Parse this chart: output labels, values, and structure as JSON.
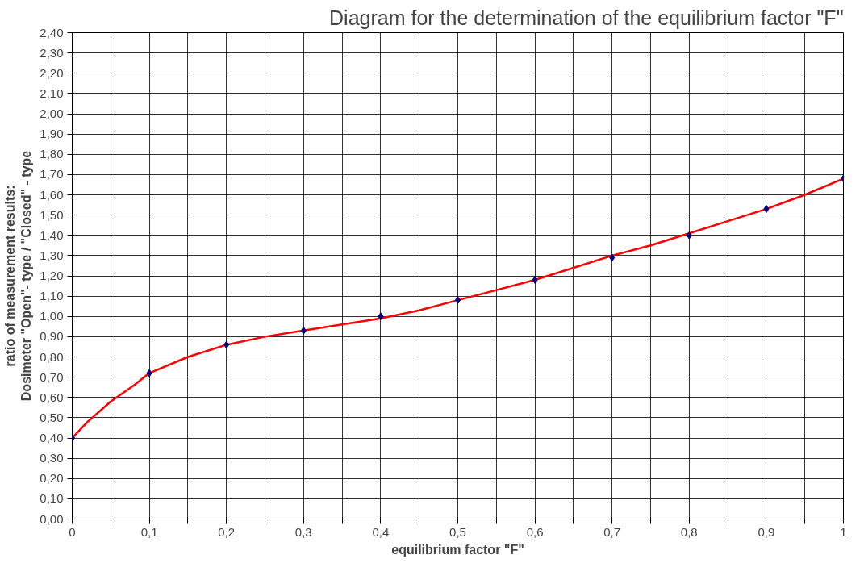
{
  "chart_data": {
    "type": "scatter",
    "title": "Diagram for the determination of the equilibrium factor \"F\"",
    "xlabel": "equilibrium factor \"F\"",
    "ylabel": "ratio of measurement results:\nDosimeter \"Open\"- type / \"Closed\" - type",
    "x": [
      0,
      0.1,
      0.2,
      0.3,
      0.4,
      0.5,
      0.6,
      0.7,
      0.8,
      0.9,
      1
    ],
    "series": [
      {
        "type": "line",
        "color": "#ff0000",
        "marker": "none",
        "line_style": "solid",
        "x": [
          0,
          0.02,
          0.05,
          0.08,
          0.1,
          0.15,
          0.2,
          0.25,
          0.3,
          0.35,
          0.4,
          0.45,
          0.5,
          0.55,
          0.6,
          0.65,
          0.7,
          0.75,
          0.8,
          0.85,
          0.9,
          0.95,
          1
        ],
        "values": [
          0.4,
          0.48,
          0.58,
          0.66,
          0.72,
          0.8,
          0.86,
          0.9,
          0.93,
          0.96,
          0.99,
          1.03,
          1.08,
          1.13,
          1.18,
          1.24,
          1.3,
          1.35,
          1.41,
          1.47,
          1.53,
          1.6,
          1.68
        ]
      },
      {
        "color": "#000080",
        "marker": "diamond",
        "values": [
          0.4,
          0.72,
          0.86,
          0.93,
          1.0,
          1.08,
          1.18,
          1.29,
          1.4,
          1.53,
          1.68
        ]
      }
    ],
    "xlim": [
      0,
      1
    ],
    "ylim": [
      0,
      2.4
    ],
    "xticks": [
      0,
      {
        "value": 0.05,
        "label": null
      },
      {
        "value": 0.1,
        "label": "0,1"
      },
      {
        "value": 0.15,
        "label": null
      },
      {
        "value": 0.2,
        "label": "0,2"
      },
      {
        "value": 0.25,
        "label": null
      },
      {
        "value": 0.3,
        "label": "0,3"
      },
      {
        "value": 0.35,
        "label": null
      },
      {
        "value": 0.4,
        "label": "0,4"
      },
      {
        "value": 0.45,
        "label": null
      },
      {
        "value": 0.5,
        "label": "0,5"
      },
      {
        "value": 0.55,
        "label": null
      },
      {
        "value": 0.6,
        "label": "0,6"
      },
      {
        "value": 0.65,
        "label": null
      },
      {
        "value": 0.7,
        "label": "0,7"
      },
      {
        "value": 0.75,
        "label": null
      },
      {
        "value": 0.8,
        "label": "0,8"
      },
      {
        "value": 0.85,
        "label": null
      },
      {
        "value": 0.9,
        "label": "0,9"
      },
      {
        "value": 0.95,
        "label": null
      },
      1
    ],
    "yticks": [
      {
        "value": 0,
        "label": "0,00"
      },
      {
        "value": 0.1,
        "label": "0,10"
      },
      {
        "value": 0.2,
        "label": "0,20"
      },
      {
        "value": 0.3,
        "label": "0,30"
      },
      {
        "value": 0.4,
        "label": "0,40"
      },
      {
        "value": 0.5,
        "label": "0,50"
      },
      {
        "value": 0.6,
        "label": "0,60"
      },
      {
        "value": 0.7,
        "label": "0,70"
      },
      {
        "value": 0.8,
        "label": "0,80"
      },
      {
        "value": 0.9,
        "label": "0,90"
      },
      {
        "value": 1.0,
        "label": "1,00"
      },
      {
        "value": 1.1,
        "label": "1,10"
      },
      {
        "value": 1.2,
        "label": "1,20"
      },
      {
        "value": 1.3,
        "label": "1,30"
      },
      {
        "value": 1.4,
        "label": "1,40"
      },
      {
        "value": 1.5,
        "label": "1,50"
      },
      {
        "value": 1.6,
        "label": "1,60"
      },
      {
        "value": 1.7,
        "label": "1,70"
      },
      {
        "value": 1.8,
        "label": "1,80"
      },
      {
        "value": 1.9,
        "label": "1,90"
      },
      {
        "value": 2.0,
        "label": "2,00"
      },
      {
        "value": 2.1,
        "label": "2,10"
      },
      {
        "value": 2.2,
        "label": "2,20"
      },
      {
        "value": 2.3,
        "label": "2,30"
      },
      {
        "value": 2.4,
        "label": "2,40"
      }
    ],
    "grid": true
  }
}
